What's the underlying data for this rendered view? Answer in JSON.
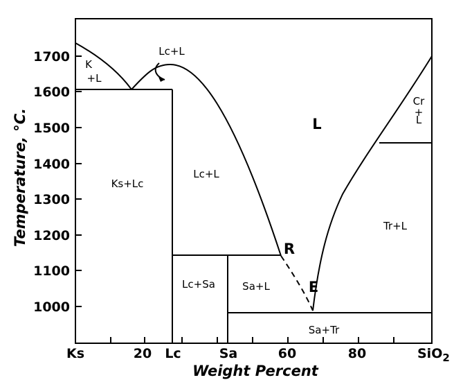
{
  "axes": {
    "y_title": "Temperature, °C.",
    "x_title": "Weight Percent",
    "y_ticks": [
      "1700",
      "1600",
      "1500",
      "1400",
      "1300",
      "1200",
      "1100",
      "1000"
    ],
    "x_ticks": [
      "Ks",
      "20",
      "Lc",
      "Sa",
      "60",
      "80",
      "SiO"
    ],
    "x_tick_subscript": "2"
  },
  "regions": {
    "k_l_top": "K",
    "k_l_bottom": "+L",
    "lc_l_top": "Lc+L",
    "liquid": "L",
    "cr": "Cr",
    "cr_plus": "+",
    "cr_l": "L",
    "ks_lc": "Ks+Lc",
    "lc_l": "Lc+L",
    "tr_l": "Tr+L",
    "lc_sa": "Lc+Sa",
    "sa_l": "Sa+L",
    "sa_tr": "Sa+Tr"
  },
  "points": {
    "r": "R",
    "e": "E"
  }
}
